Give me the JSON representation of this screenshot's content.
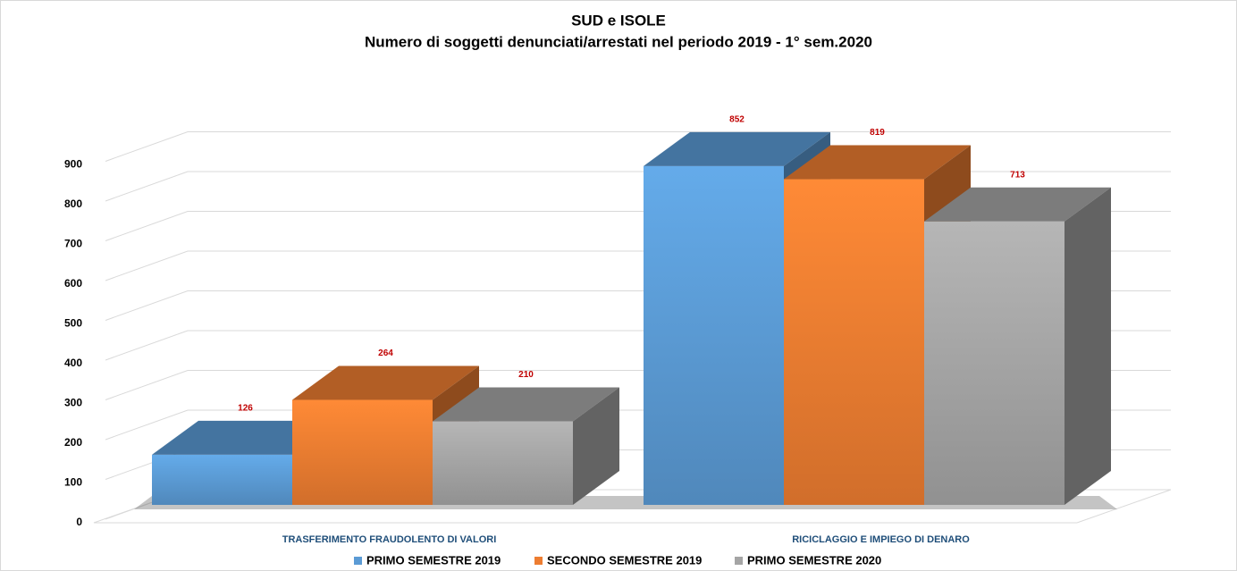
{
  "chart_data": {
    "type": "bar3d",
    "title": "SUD e ISOLE",
    "subtitle": "Numero di soggetti denunciati/arrestati nel periodo 2019 - 1° sem.2020",
    "categories": [
      "TRASFERIMENTO FRAUDOLENTO DI VALORI",
      "RICICLAGGIO E IMPIEGO DI DENARO"
    ],
    "series": [
      {
        "name": "PRIMO SEMESTRE 2019",
        "color": "#5b9bd5",
        "values": [
          126,
          852
        ]
      },
      {
        "name": "SECONDO SEMESTRE 2019",
        "color": "#ed7d31",
        "values": [
          264,
          819
        ]
      },
      {
        "name": "PRIMO SEMESTRE 2020",
        "color": "#a5a5a5",
        "values": [
          210,
          713
        ]
      }
    ],
    "ylim": [
      0,
      1000
    ],
    "yticks": [
      0,
      100,
      200,
      300,
      400,
      500,
      600,
      700,
      800,
      900
    ],
    "grid": true,
    "legend": "bottom"
  }
}
